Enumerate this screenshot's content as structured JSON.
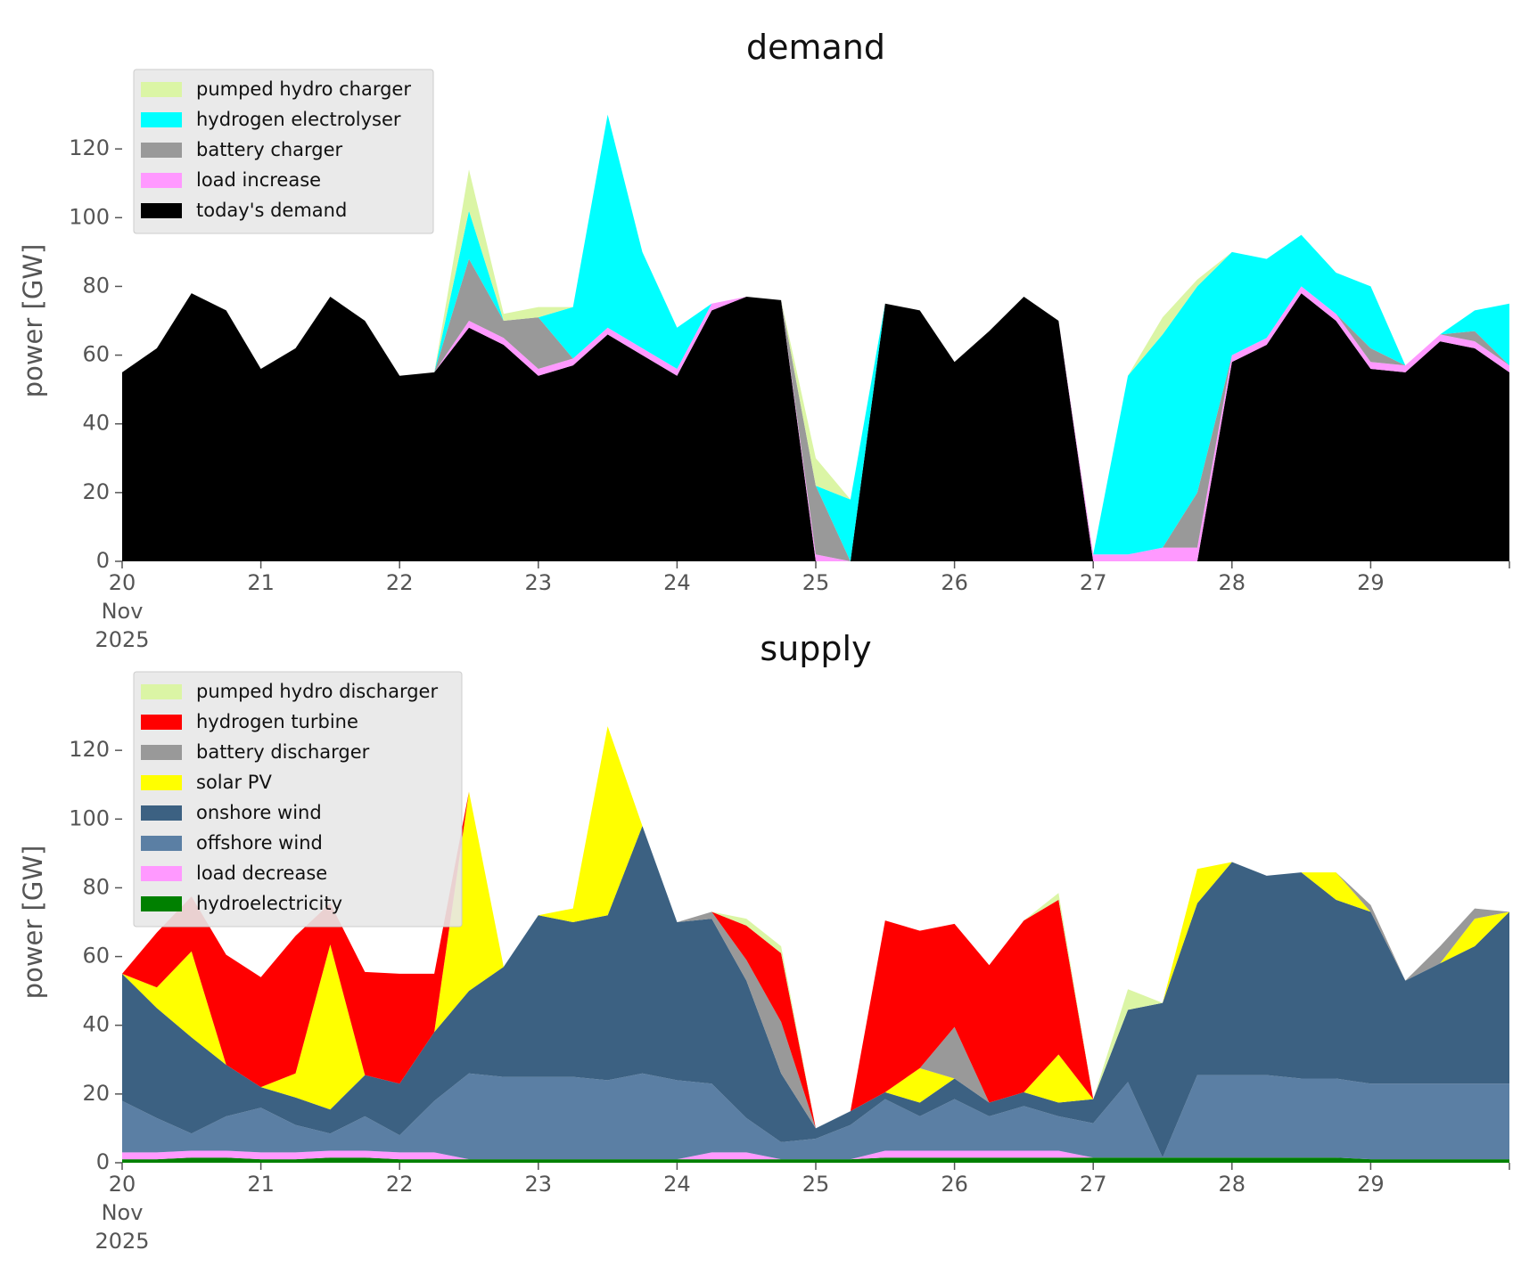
{
  "chart_data": [
    {
      "type": "area",
      "title": "demand",
      "ylabel": "power [GW]",
      "ylim": [
        0,
        140
      ],
      "yticks": [
        "0",
        "20",
        "40",
        "60",
        "80",
        "100",
        "120"
      ],
      "xlim": [
        "2025-11-20",
        "2025-11-30"
      ],
      "xticks": [
        "20",
        "21",
        "22",
        "23",
        "24",
        "25",
        "26",
        "27",
        "28",
        "29"
      ],
      "x_start_label": [
        "20",
        "Nov",
        "2025"
      ],
      "grid": false,
      "legend": "top-left",
      "x": [
        "2025-11-20T00:00",
        "2025-11-20T06:00",
        "2025-11-20T12:00",
        "2025-11-20T18:00",
        "2025-11-21T00:00",
        "2025-11-21T06:00",
        "2025-11-21T12:00",
        "2025-11-21T18:00",
        "2025-11-22T00:00",
        "2025-11-22T06:00",
        "2025-11-22T12:00",
        "2025-11-22T18:00",
        "2025-11-23T00:00",
        "2025-11-23T06:00",
        "2025-11-23T12:00",
        "2025-11-23T18:00",
        "2025-11-24T00:00",
        "2025-11-24T06:00",
        "2025-11-24T12:00",
        "2025-11-24T18:00",
        "2025-11-25T00:00",
        "2025-11-25T06:00",
        "2025-11-25T12:00",
        "2025-11-25T18:00",
        "2025-11-26T00:00",
        "2025-11-26T06:00",
        "2025-11-26T12:00",
        "2025-11-26T18:00",
        "2025-11-27T00:00",
        "2025-11-27T06:00",
        "2025-11-27T12:00",
        "2025-11-27T18:00",
        "2025-11-28T00:00",
        "2025-11-28T06:00",
        "2025-11-28T12:00",
        "2025-11-28T18:00",
        "2025-11-29T00:00",
        "2025-11-29T06:00",
        "2025-11-29T12:00",
        "2025-11-29T18:00",
        "2025-11-30T00:00"
      ],
      "series": [
        {
          "name": "today's demand",
          "color": "#000000",
          "values": [
            55,
            62,
            78,
            73,
            56,
            62,
            77,
            70,
            54,
            55,
            68,
            63,
            54,
            57,
            66,
            60,
            54,
            73,
            77,
            76,
            0,
            0,
            75,
            73,
            58,
            67,
            77,
            70,
            0,
            0,
            0,
            0,
            58,
            63,
            78,
            70,
            56,
            55,
            64,
            62,
            55
          ]
        },
        {
          "name": "load increase",
          "color": "#ff99ff",
          "values": [
            0,
            0,
            0,
            0,
            0,
            0,
            0,
            0,
            0,
            0,
            2,
            2,
            2,
            2,
            2,
            2,
            2,
            2,
            0,
            0,
            2,
            0,
            0,
            0,
            0,
            0,
            0,
            0,
            2,
            2,
            4,
            4,
            2,
            2,
            2,
            2,
            2,
            2,
            2,
            2,
            2
          ]
        },
        {
          "name": "battery charger",
          "color": "#999999",
          "values": [
            0,
            0,
            0,
            0,
            0,
            0,
            0,
            0,
            0,
            0,
            18,
            5,
            15,
            0,
            0,
            0,
            0,
            0,
            0,
            0,
            20,
            0,
            0,
            0,
            0,
            0,
            0,
            0,
            0,
            0,
            0,
            16,
            0,
            0,
            0,
            0,
            4,
            0,
            0,
            3,
            0
          ]
        },
        {
          "name": "hydrogen electrolyser",
          "color": "#00ffff",
          "values": [
            0,
            0,
            0,
            0,
            0,
            0,
            0,
            0,
            0,
            0,
            14,
            0,
            0,
            15,
            62,
            28,
            12,
            0,
            0,
            0,
            0,
            18,
            0,
            0,
            0,
            0,
            0,
            0,
            0,
            52,
            62,
            60,
            30,
            23,
            15,
            12,
            18,
            0,
            0,
            6,
            18
          ]
        },
        {
          "name": "pumped hydro charger",
          "color": "#dbf5a5",
          "values": [
            0,
            0,
            0,
            0,
            0,
            0,
            0,
            0,
            0,
            0,
            12,
            2,
            3,
            0,
            0,
            0,
            0,
            0,
            0,
            0,
            8,
            0,
            0,
            0,
            0,
            0,
            0,
            0,
            0,
            0,
            5,
            2,
            0,
            0,
            0,
            0,
            0,
            0,
            0,
            0,
            0
          ]
        }
      ]
    },
    {
      "type": "area",
      "title": "supply",
      "ylabel": "power [GW]",
      "ylim": [
        0,
        140
      ],
      "yticks": [
        "0",
        "20",
        "40",
        "60",
        "80",
        "100",
        "120"
      ],
      "xlim": [
        "2025-11-20",
        "2025-11-30"
      ],
      "xticks": [
        "20",
        "21",
        "22",
        "23",
        "24",
        "25",
        "26",
        "27",
        "28",
        "29"
      ],
      "x_start_label": [
        "20",
        "Nov",
        "2025"
      ],
      "grid": false,
      "legend": "top-left",
      "x": [
        "2025-11-20T00:00",
        "2025-11-20T06:00",
        "2025-11-20T12:00",
        "2025-11-20T18:00",
        "2025-11-21T00:00",
        "2025-11-21T06:00",
        "2025-11-21T12:00",
        "2025-11-21T18:00",
        "2025-11-22T00:00",
        "2025-11-22T06:00",
        "2025-11-22T12:00",
        "2025-11-22T18:00",
        "2025-11-23T00:00",
        "2025-11-23T06:00",
        "2025-11-23T12:00",
        "2025-11-23T18:00",
        "2025-11-24T00:00",
        "2025-11-24T06:00",
        "2025-11-24T12:00",
        "2025-11-24T18:00",
        "2025-11-25T00:00",
        "2025-11-25T06:00",
        "2025-11-25T12:00",
        "2025-11-25T18:00",
        "2025-11-26T00:00",
        "2025-11-26T06:00",
        "2025-11-26T12:00",
        "2025-11-26T18:00",
        "2025-11-27T00:00",
        "2025-11-27T06:00",
        "2025-11-27T12:00",
        "2025-11-27T18:00",
        "2025-11-28T00:00",
        "2025-11-28T06:00",
        "2025-11-28T12:00",
        "2025-11-28T18:00",
        "2025-11-29T00:00",
        "2025-11-29T06:00",
        "2025-11-29T12:00",
        "2025-11-29T18:00",
        "2025-11-30T00:00"
      ],
      "series": [
        {
          "name": "hydroelectricity",
          "color": "#008000",
          "values": [
            1,
            1,
            1.5,
            1.5,
            1,
            1,
            1.5,
            1.5,
            1,
            1,
            1,
            1,
            1,
            1,
            1,
            1,
            1,
            1,
            1,
            1,
            1,
            1,
            1.5,
            1.5,
            1.5,
            1.5,
            1.5,
            1.5,
            1.5,
            1.5,
            1.5,
            1.5,
            1.5,
            1.5,
            1.5,
            1.5,
            1,
            1,
            1,
            1,
            1
          ]
        },
        {
          "name": "load decrease",
          "color": "#ff99ff",
          "values": [
            2,
            2,
            2,
            2,
            2,
            2,
            2,
            2,
            2,
            2,
            0,
            0,
            0,
            0,
            0,
            0,
            0,
            2,
            2,
            0,
            0,
            0,
            2,
            2,
            2,
            2,
            2,
            2,
            0,
            0,
            0,
            0,
            0,
            0,
            0,
            0,
            0,
            0,
            0,
            0,
            0
          ]
        },
        {
          "name": "offshore wind",
          "color": "#5b7fa4",
          "values": [
            15,
            10,
            5,
            10,
            13,
            8,
            5,
            10,
            5,
            15,
            25,
            24,
            24,
            24,
            23,
            25,
            23,
            20,
            10,
            5,
            6,
            10,
            15,
            10,
            15,
            10,
            13,
            10,
            10,
            22,
            0,
            24,
            24,
            24,
            23,
            23,
            22,
            22,
            22,
            22,
            22
          ]
        },
        {
          "name": "onshore wind",
          "color": "#3c6182",
          "values": [
            37,
            32,
            28,
            15,
            6,
            8,
            7,
            12,
            15,
            20,
            24,
            32,
            47,
            45,
            48,
            72,
            46,
            48,
            40,
            20,
            3,
            4,
            2,
            4,
            6,
            4,
            4,
            4,
            7,
            21,
            45,
            50,
            62,
            58,
            60,
            52,
            50,
            30,
            35,
            40,
            50
          ]
        },
        {
          "name": "solar PV",
          "color": "#ffff00",
          "values": [
            0,
            6,
            25,
            0,
            0,
            7,
            48,
            0,
            0,
            0,
            58,
            0,
            0,
            4,
            55,
            0,
            0,
            0,
            0,
            0,
            0,
            0,
            0,
            10,
            0,
            0,
            0,
            14,
            0,
            0,
            0,
            10,
            0,
            0,
            0,
            8,
            0,
            0,
            0,
            8,
            0
          ]
        },
        {
          "name": "battery discharger",
          "color": "#999999",
          "values": [
            0,
            0,
            0,
            0,
            0,
            0,
            0,
            0,
            0,
            0,
            0,
            0,
            0,
            0,
            0,
            0,
            0,
            2,
            6,
            15,
            0,
            0,
            0,
            0,
            15,
            0,
            0,
            0,
            0,
            0,
            0,
            0,
            0,
            0,
            0,
            0,
            2,
            0,
            5,
            3,
            0
          ]
        },
        {
          "name": "hydrogen turbine",
          "color": "#ff0000",
          "values": [
            0,
            16,
            16,
            32,
            32,
            40,
            12,
            30,
            32,
            17,
            0,
            0,
            0,
            0,
            0,
            0,
            0,
            0,
            10,
            20,
            0,
            0,
            50,
            40,
            30,
            40,
            50,
            45,
            0,
            0,
            0,
            0,
            0,
            0,
            0,
            0,
            0,
            0,
            0,
            0,
            0
          ]
        },
        {
          "name": "pumped hydro discharger",
          "color": "#dbf5a5",
          "values": [
            0,
            0,
            0,
            0,
            0,
            0,
            0,
            0,
            0,
            0,
            0,
            0,
            0,
            0,
            0,
            0,
            0,
            0,
            2,
            2,
            0,
            0,
            0,
            0,
            0,
            0,
            0,
            2,
            0,
            6,
            0,
            0,
            0,
            0,
            0,
            0,
            0,
            0,
            0,
            0,
            0
          ]
        }
      ]
    }
  ]
}
